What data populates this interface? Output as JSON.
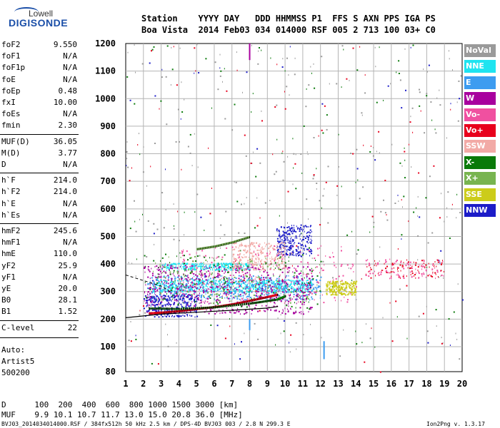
{
  "logo": {
    "line1": "Lowell",
    "line2": "DIGISONDE"
  },
  "header": {
    "line1": "Station    YYYY DAY   DDD HHMMSS P1  FFS S AXN PPS IGA PS",
    "line2": "Boa Vista  2014 Feb03 034 014000 RSF 005 2 713 100 03+ C0"
  },
  "params": [
    {
      "name": "foF2",
      "value": "9.550"
    },
    {
      "name": "foF1",
      "value": "N/A"
    },
    {
      "name": "foF1p",
      "value": "N/A"
    },
    {
      "name": "foE",
      "value": "N/A"
    },
    {
      "name": "foEp",
      "value": "0.48"
    },
    {
      "name": "fxI",
      "value": "10.00"
    },
    {
      "name": "foEs",
      "value": "N/A"
    },
    {
      "name": "fmin",
      "value": "2.30"
    },
    {
      "name": "MUF(D)",
      "value": "36.05"
    },
    {
      "name": "M(D)",
      "value": "3.77"
    },
    {
      "name": "D",
      "value": "N/A"
    },
    {
      "name": "h`F",
      "value": "214.0"
    },
    {
      "name": "h`F2",
      "value": "214.0"
    },
    {
      "name": "h`E",
      "value": "N/A"
    },
    {
      "name": "h`Es",
      "value": "N/A"
    },
    {
      "name": "hmF2",
      "value": "245.6"
    },
    {
      "name": "hmF1",
      "value": "N/A"
    },
    {
      "name": "hmE",
      "value": "110.0"
    },
    {
      "name": "yF2",
      "value": "25.9"
    },
    {
      "name": "yF1",
      "value": "N/A"
    },
    {
      "name": "yE",
      "value": "20.0"
    },
    {
      "name": "B0",
      "value": "28.1"
    },
    {
      "name": "B1",
      "value": "1.52"
    },
    {
      "name": "C-level",
      "value": "22"
    }
  ],
  "auto": {
    "label": "Auto:",
    "artist": "Artist5",
    "version": "500200"
  },
  "legend": [
    {
      "label": "NoVal",
      "color": "#9a9a9a"
    },
    {
      "label": "NNE",
      "color": "#1fe4f0"
    },
    {
      "label": "E",
      "color": "#3d9cf0"
    },
    {
      "label": "W",
      "color": "#a8009e"
    },
    {
      "label": "Vo-",
      "color": "#f050a0"
    },
    {
      "label": "Vo+",
      "color": "#e8001c"
    },
    {
      "label": "SSW",
      "color": "#f2aaa6"
    },
    {
      "label": "X-",
      "color": "#0a7a0a"
    },
    {
      "label": "X+",
      "color": "#78b450"
    },
    {
      "label": "SSE",
      "color": "#cccc1a"
    },
    {
      "label": "NNW",
      "color": "#1c1cc8"
    }
  ],
  "footer": {
    "d_row": "D      100  200  400  600  800 1000 1500 3000 [km]",
    "muf_row": "MUF    9.9 10.1 10.7 11.7 13.0 15.0 20.8 36.0 [MHz]",
    "file_info": "BVJ03_2014034014000.RSF / 384fx512h 50 kHz 2.5 km / DPS-4D BVJ03 003 / 2.8 N 299.3 E",
    "version": "Ion2Png v. 1.3.17"
  },
  "chart_data": {
    "type": "scatter",
    "xlabel": "",
    "ylabel": "",
    "xlim": [
      1,
      20
    ],
    "ylim": [
      80,
      1200
    ],
    "x_ticks": [
      1,
      2,
      3,
      4,
      5,
      6,
      7,
      8,
      9,
      10,
      11,
      12,
      13,
      14,
      15,
      16,
      17,
      18,
      19,
      20
    ],
    "y_ticks": [
      80,
      100,
      200,
      300,
      400,
      500,
      600,
      700,
      800,
      900,
      1000,
      1100,
      1200
    ],
    "grid": true,
    "legend_position": "right",
    "trace_o": [
      [
        2.3,
        222
      ],
      [
        3,
        225
      ],
      [
        4,
        230
      ],
      [
        5,
        238
      ],
      [
        6,
        245
      ],
      [
        7,
        255
      ],
      [
        8,
        268
      ],
      [
        9,
        282
      ],
      [
        9.55,
        290
      ]
    ],
    "trace_x": [
      [
        2.3,
        240
      ],
      [
        4,
        238
      ],
      [
        6,
        244
      ],
      [
        8,
        258
      ],
      [
        9.5,
        272
      ],
      [
        10,
        285
      ]
    ],
    "upper_trace": [
      [
        5,
        455
      ],
      [
        6,
        465
      ],
      [
        7,
        480
      ],
      [
        8,
        500
      ]
    ],
    "black_curve": [
      [
        1,
        205
      ],
      [
        3,
        218
      ],
      [
        5,
        225
      ],
      [
        7,
        232
      ],
      [
        9,
        240
      ],
      [
        9.6,
        246
      ]
    ],
    "dash_curve": [
      [
        1,
        360
      ],
      [
        2,
        340
      ],
      [
        3,
        320
      ],
      [
        3.5,
        300
      ]
    ],
    "clusters": [
      {
        "series": "NNE",
        "x": [
          2.5,
          11.5
        ],
        "y": [
          300,
          345
        ],
        "count": 700
      },
      {
        "series": "NNE",
        "x": [
          3,
          8
        ],
        "y": [
          380,
          405
        ],
        "count": 260
      },
      {
        "series": "E",
        "x": [
          2.2,
          12
        ],
        "y": [
          270,
          360
        ],
        "count": 500
      },
      {
        "series": "W",
        "x": [
          2,
          11.5
        ],
        "y": [
          220,
          400
        ],
        "count": 700
      },
      {
        "series": "NNW",
        "x": [
          9.5,
          11.5
        ],
        "y": [
          430,
          545
        ],
        "count": 260
      },
      {
        "series": "NNW",
        "x": [
          2,
          5
        ],
        "y": [
          210,
          290
        ],
        "count": 250
      },
      {
        "series": "SSW",
        "x": [
          7,
          10
        ],
        "y": [
          380,
          480
        ],
        "count": 260
      },
      {
        "series": "Vo-",
        "x": [
          4,
          14
        ],
        "y": [
          260,
          470
        ],
        "count": 220
      },
      {
        "series": "X-",
        "x": [
          2,
          12
        ],
        "y": [
          240,
          440
        ],
        "count": 140
      },
      {
        "series": "X+",
        "x": [
          2.5,
          12
        ],
        "y": [
          260,
          430
        ],
        "count": 160
      },
      {
        "series": "SSE",
        "x": [
          12.3,
          14
        ],
        "y": [
          290,
          340
        ],
        "count": 220
      },
      {
        "series": "Vo+",
        "x": [
          14.5,
          19
        ],
        "y": [
          350,
          420
        ],
        "count": 90
      },
      {
        "series": "Vo-",
        "x": [
          14.5,
          19
        ],
        "y": [
          350,
          420
        ],
        "count": 90
      },
      {
        "series": "NoVal",
        "x": [
          1,
          20
        ],
        "y": [
          80,
          1200
        ],
        "count": 260
      },
      {
        "series": "X-",
        "x": [
          1,
          20
        ],
        "y": [
          80,
          1200
        ],
        "count": 120
      },
      {
        "series": "Vo+",
        "x": [
          1,
          20
        ],
        "y": [
          80,
          1200
        ],
        "count": 90
      },
      {
        "series": "NNW",
        "x": [
          1,
          20
        ],
        "y": [
          80,
          1200
        ],
        "count": 50
      }
    ],
    "streaks": [
      {
        "series": "W",
        "x": 8,
        "y": [
          1140,
          1200
        ]
      },
      {
        "series": "E",
        "x": 8,
        "y": [
          160,
          200
        ]
      },
      {
        "series": "E",
        "x": 12.2,
        "y": [
          90,
          120
        ]
      }
    ]
  }
}
